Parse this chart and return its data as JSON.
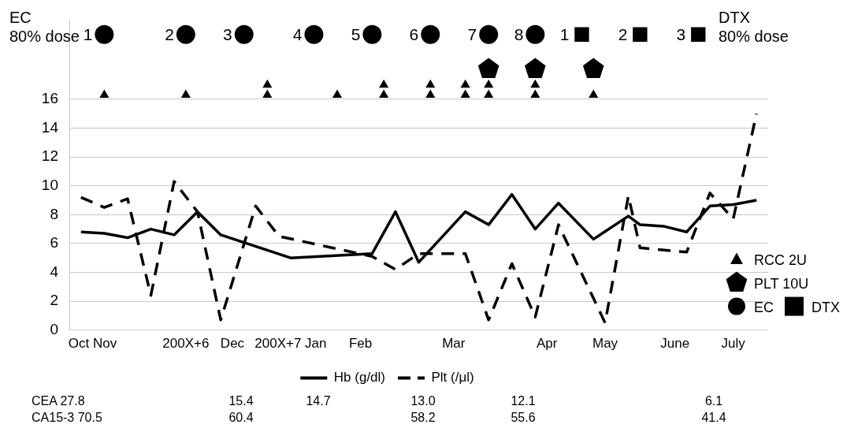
{
  "chart_data": {
    "type": "line",
    "categories": [
      null,
      null,
      "Oct Nov",
      null,
      null,
      null,
      null,
      null,
      null,
      null,
      "200X+6",
      null,
      null,
      null,
      "Dec",
      null,
      null,
      null,
      null,
      "200X+7 Jan",
      null,
      null,
      null,
      null,
      null,
      "Feb",
      null,
      null,
      null,
      null,
      null,
      null,
      null,
      "Mar",
      null,
      null,
      null,
      null,
      null,
      null,
      null,
      "Apr",
      null,
      null,
      null,
      null,
      "May",
      null,
      null,
      null,
      null,
      null,
      "June",
      null,
      null,
      null,
      null,
      "July",
      null,
      null,
      null
    ],
    "ylim": [
      0,
      21.5
    ],
    "yticks": [
      0,
      2,
      4,
      6,
      8,
      10,
      12,
      14,
      16
    ],
    "grid": "y",
    "legend": "bottom",
    "series": [
      {
        "name": "Hb (g/dl)",
        "color": "#000000",
        "line_style": "solid",
        "values": [
          null,
          6.8,
          null,
          6.7,
          null,
          6.4,
          null,
          7.0,
          null,
          6.6,
          null,
          8.2,
          null,
          6.6,
          null,
          null,
          null,
          null,
          null,
          5.0,
          null,
          null,
          null,
          null,
          null,
          null,
          5.3,
          null,
          8.2,
          null,
          4.7,
          null,
          null,
          null,
          8.2,
          null,
          7.3,
          null,
          9.4,
          null,
          7.0,
          null,
          8.8,
          null,
          null,
          6.3,
          null,
          null,
          7.9,
          7.3,
          null,
          7.2,
          null,
          6.8,
          null,
          8.6,
          null,
          8.7,
          null,
          9.0,
          null
        ]
      },
      {
        "name": "Plt (/μl)",
        "color": "#000000",
        "line_style": "dashed",
        "values": [
          null,
          9.2,
          null,
          8.5,
          null,
          9.1,
          null,
          2.4,
          null,
          10.3,
          null,
          8.2,
          null,
          0.7,
          null,
          null,
          8.6,
          null,
          6.5,
          null,
          null,
          null,
          null,
          null,
          null,
          null,
          5.1,
          null,
          4.2,
          null,
          5.3,
          null,
          null,
          null,
          5.3,
          null,
          0.7,
          null,
          4.6,
          null,
          0.9,
          null,
          7.3,
          null,
          null,
          null,
          0.5,
          null,
          9.3,
          5.7,
          null,
          null,
          null,
          5.4,
          null,
          9.5,
          null,
          7.7,
          null,
          15.0,
          null
        ]
      },
      {
        "name": "RCC 2U",
        "type": "scatter",
        "color": "#000000",
        "marker": "triangle",
        "values": [
          null,
          null,
          null,
          16.3,
          null,
          null,
          null,
          null,
          null,
          null,
          16.3,
          null,
          null,
          null,
          null,
          null,
          null,
          16.3,
          null,
          null,
          null,
          null,
          null,
          16.3,
          null,
          null,
          null,
          16.3,
          null,
          null,
          null,
          16.3,
          null,
          null,
          16.3,
          null,
          16.3,
          null,
          null,
          null,
          16.3,
          null,
          null,
          null,
          null,
          16.3,
          null,
          null,
          null,
          null,
          null,
          null,
          null,
          null,
          null,
          null,
          null,
          null,
          null,
          null,
          null
        ]
      },
      {
        "type": "scatter",
        "color": "#000000",
        "marker": "triangle",
        "values": [
          null,
          null,
          null,
          null,
          null,
          null,
          null,
          null,
          null,
          null,
          null,
          null,
          null,
          null,
          null,
          null,
          null,
          17.0,
          null,
          null,
          null,
          null,
          null,
          null,
          null,
          null,
          null,
          17.0,
          null,
          null,
          null,
          17.0,
          null,
          null,
          17.0,
          null,
          17.0,
          null,
          null,
          null,
          17.0,
          null,
          null,
          null,
          null,
          null,
          null,
          null,
          null,
          null,
          null,
          null,
          null,
          null,
          null,
          null,
          null,
          null,
          null,
          null,
          null
        ]
      },
      {
        "name": "PLT 10U",
        "type": "scatter",
        "color": "#000000",
        "values": [
          null,
          null,
          null,
          null,
          null,
          null,
          null,
          null,
          null,
          null,
          null,
          null,
          null,
          null,
          null,
          null,
          null,
          null,
          null,
          null,
          null,
          null,
          null,
          null,
          null,
          null,
          null,
          null,
          null,
          null,
          null,
          null,
          null,
          null,
          null,
          null,
          18.1,
          null,
          null,
          null,
          18.1,
          null,
          null,
          null,
          null,
          18.1,
          null,
          null,
          null,
          null,
          null,
          null,
          null,
          null,
          null,
          null,
          null,
          null,
          null,
          null,
          null
        ]
      },
      {
        "name": "EC",
        "type": "scatter",
        "color": "#000000",
        "marker": "circle",
        "values": [
          null,
          null,
          null,
          20.5,
          null,
          null,
          null,
          null,
          null,
          null,
          20.5,
          null,
          null,
          null,
          null,
          20.5,
          null,
          null,
          null,
          null,
          null,
          20.5,
          null,
          null,
          null,
          null,
          20.5,
          null,
          null,
          null,
          null,
          20.5,
          null,
          null,
          null,
          null,
          20.5,
          null,
          null,
          null,
          20.5,
          null,
          null,
          null,
          null,
          null,
          null,
          null,
          null,
          null,
          null,
          null,
          null,
          null,
          null,
          null,
          null,
          null,
          null,
          null,
          null
        ]
      },
      {
        "name": "DTX",
        "type": "scatter",
        "color": "#000000",
        "marker": "square",
        "values": [
          null,
          null,
          null,
          null,
          null,
          null,
          null,
          null,
          null,
          null,
          null,
          null,
          null,
          null,
          null,
          null,
          null,
          null,
          null,
          null,
          null,
          null,
          null,
          null,
          null,
          null,
          null,
          null,
          null,
          null,
          null,
          null,
          null,
          null,
          null,
          null,
          null,
          null,
          null,
          null,
          null,
          null,
          null,
          null,
          20.5,
          null,
          null,
          null,
          null,
          20.5,
          null,
          null,
          null,
          null,
          20.5,
          null,
          null,
          null,
          null,
          null,
          null
        ]
      }
    ],
    "annotations": [
      "EC\n80% dose",
      "DTX\n80% dose",
      "1",
      "2",
      "3",
      "4",
      "5",
      "6",
      "7",
      "8",
      "1",
      "2",
      "3",
      "CEA 27.8",
      "15.4",
      "14.7",
      "13.0",
      "12.1",
      "6.1",
      "CA15-3 70.5",
      "60.4",
      "58.2",
      "55.6",
      "41.4"
    ]
  }
}
